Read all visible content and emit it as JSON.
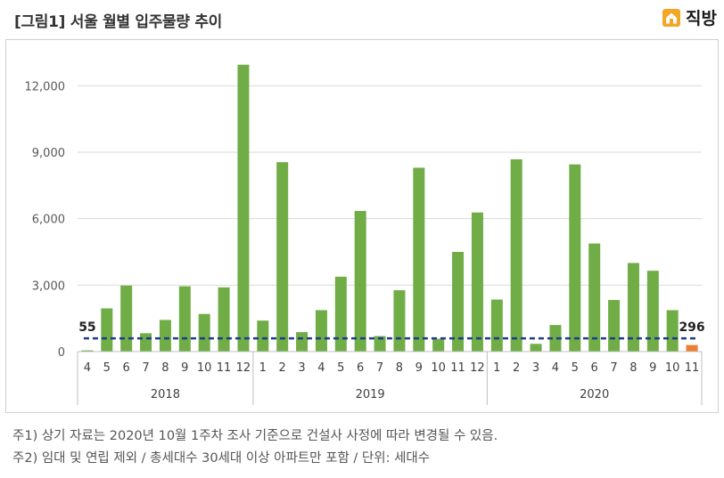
{
  "header": {
    "title": "[그림1] 서울 월별 입주물량 추이",
    "logo_text": "직방",
    "logo_icon": "house-logo-icon",
    "brand_color": "#f5a623"
  },
  "chart_data": {
    "type": "bar",
    "ylim": [
      0,
      13500
    ],
    "yticks": [
      0,
      3000,
      6000,
      9000,
      12000
    ],
    "ytick_labels": [
      "0",
      "3,000",
      "6,000",
      "9,000",
      "12,000"
    ],
    "grid": true,
    "bar_color": "#70ad47",
    "highlight_color": "#ed7d31",
    "line_color": "#1f3c88",
    "categories": [
      "4",
      "5",
      "6",
      "7",
      "8",
      "9",
      "10",
      "11",
      "12",
      "1",
      "2",
      "3",
      "4",
      "5",
      "6",
      "7",
      "8",
      "9",
      "10",
      "11",
      "12",
      "1",
      "2",
      "3",
      "4",
      "5",
      "6",
      "7",
      "8",
      "9",
      "10",
      "11"
    ],
    "years": [
      {
        "label": "2018",
        "count": 9
      },
      {
        "label": "2019",
        "count": 12
      },
      {
        "label": "2020",
        "count": 11
      }
    ],
    "values": [
      55,
      1950,
      2980,
      830,
      1430,
      2950,
      1700,
      2900,
      12950,
      1400,
      8550,
      880,
      1870,
      3380,
      6350,
      700,
      2770,
      8300,
      580,
      4500,
      6280,
      2350,
      8680,
      350,
      1200,
      8450,
      4880,
      2330,
      4000,
      3650,
      1870,
      296
    ],
    "highlight_index": 31,
    "reference_line_value": 600,
    "annotations": [
      {
        "label": "55",
        "index": 0
      },
      {
        "label": "296",
        "index": 31
      }
    ]
  },
  "notes": [
    "주1) 상기 자료는 2020년 10월 1주차 조사 기준으로 건설사 사정에 따라 변경될 수 있음.",
    "주2) 임대 및 연립 제외 / 총세대수 30세대 이상 아파트만 포함 / 단위: 세대수"
  ]
}
